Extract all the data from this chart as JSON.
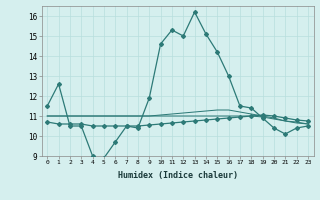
{
  "xlabel": "Humidex (Indice chaleur)",
  "x_values": [
    0,
    1,
    2,
    3,
    4,
    5,
    6,
    7,
    8,
    9,
    10,
    11,
    12,
    13,
    14,
    15,
    16,
    17,
    18,
    19,
    20,
    21,
    22,
    23
  ],
  "line1_y": [
    11.5,
    12.6,
    10.5,
    10.5,
    9.0,
    8.9,
    9.7,
    10.5,
    10.4,
    11.9,
    14.6,
    15.3,
    15.0,
    16.2,
    15.1,
    14.2,
    13.0,
    11.5,
    11.4,
    10.9,
    10.4,
    10.1,
    10.4,
    10.5
  ],
  "line2_y": [
    10.7,
    10.6,
    10.6,
    10.6,
    10.5,
    10.5,
    10.5,
    10.5,
    10.5,
    10.55,
    10.6,
    10.65,
    10.7,
    10.75,
    10.8,
    10.85,
    10.9,
    10.95,
    11.0,
    11.05,
    11.0,
    10.9,
    10.8,
    10.75
  ],
  "line3_y": [
    11.0,
    11.0,
    11.0,
    11.0,
    11.0,
    11.0,
    11.0,
    11.0,
    11.0,
    11.0,
    11.0,
    11.0,
    11.0,
    11.0,
    11.0,
    11.0,
    11.0,
    11.0,
    11.0,
    10.95,
    10.85,
    10.75,
    10.7,
    10.6
  ],
  "line4_y": [
    11.0,
    11.0,
    11.0,
    11.0,
    11.0,
    11.0,
    11.0,
    11.0,
    11.0,
    11.0,
    11.05,
    11.1,
    11.15,
    11.2,
    11.25,
    11.3,
    11.3,
    11.2,
    11.1,
    11.0,
    10.9,
    10.75,
    10.65,
    10.6
  ],
  "line_color": "#2d7a77",
  "bg_color": "#d5efee",
  "grid_color": "#b8dedd",
  "ylim": [
    9,
    16.5
  ],
  "yticks": [
    9,
    10,
    11,
    12,
    13,
    14,
    15,
    16
  ],
  "xtick_labels": [
    "0",
    "1",
    "2",
    "3",
    "4",
    "5",
    "6",
    "7",
    "8",
    "9",
    "10",
    "11",
    "12",
    "13",
    "14",
    "15",
    "16",
    "17",
    "18",
    "19",
    "20",
    "21",
    "22",
    "23"
  ]
}
